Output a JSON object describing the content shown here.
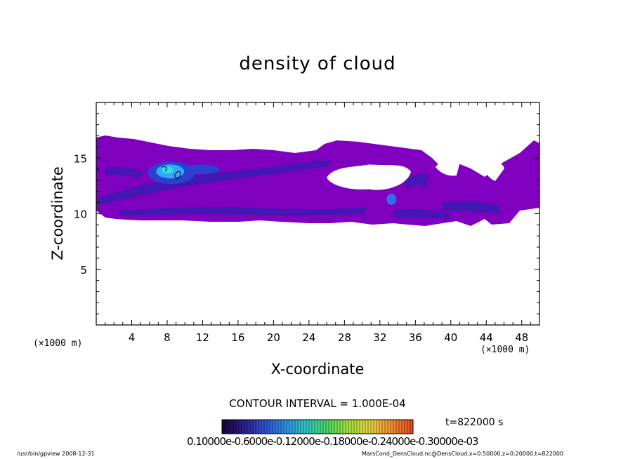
{
  "chart_data": {
    "type": "heatmap",
    "title": "density of cloud",
    "xlabel": "X-coordinate",
    "ylabel": "Z-coordinate",
    "x_unit": "(×1000 m)",
    "xlim": [
      0,
      50
    ],
    "ylim": [
      0,
      20
    ],
    "x_ticks": [
      "4",
      "8",
      "12",
      "16",
      "20",
      "24",
      "28",
      "32",
      "36",
      "40",
      "44",
      "48"
    ],
    "y_ticks": [
      "5",
      "10",
      "15"
    ],
    "x_tick_values": [
      4,
      8,
      12,
      16,
      20,
      24,
      28,
      32,
      36,
      40,
      44,
      48
    ],
    "y_tick_values": [
      5,
      10,
      15
    ],
    "contour_interval": "CONTOUR INTERVAL = 1.000E-04",
    "time_label": "t=822000 s",
    "colorbar_labels": "0.10000e-0.6000e-0.12000e-0.18000e-0.24000e-0.30000e-03",
    "colorbar_colors": [
      "#1a0033",
      "#2a1f8c",
      "#3050d0",
      "#2f8fe0",
      "#30c8c0",
      "#4cd860",
      "#a8e040",
      "#e8d040",
      "#f09030",
      "#e04828"
    ],
    "cloud_region": {
      "x_range": [
        0,
        50
      ],
      "z_range": [
        9.3,
        17.2
      ],
      "dominant_color": "#8000c0",
      "denser_color": "#3a1ab0",
      "max_core": {
        "x": 8.5,
        "z": 13.8,
        "color": "#30a8ff"
      }
    },
    "clear_gaps": [
      {
        "x_range": [
          26,
          35.5
        ],
        "z_range": [
          12.2,
          14.3
        ]
      }
    ]
  },
  "footer": {
    "left": "/usr/bin/gpview   2008-12-31",
    "right": "MarsCond_DensCloud.nc@DensCloud,x=0:50000,z=0:20000,t=822000"
  }
}
